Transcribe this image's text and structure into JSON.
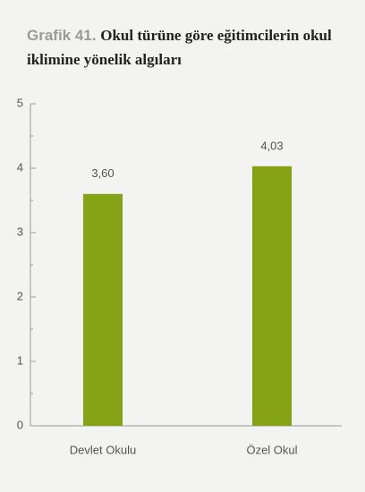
{
  "chart_data": {
    "type": "bar",
    "label": "Grafik 41.",
    "title": "Okul türüne göre eğitimcilerin okul iklimine yönelik algıları",
    "categories": [
      "Devlet Okulu",
      "Özel Okul"
    ],
    "values": [
      3.6,
      4.03
    ],
    "value_labels": [
      "3,60",
      "4,03"
    ],
    "color": "#86a315",
    "ylim": [
      0,
      5
    ],
    "yticks": [
      0,
      1,
      2,
      3,
      4,
      5
    ],
    "minor_yticks": [
      0.5,
      1.5,
      2.5,
      3.5,
      4.5
    ],
    "grid": false
  }
}
